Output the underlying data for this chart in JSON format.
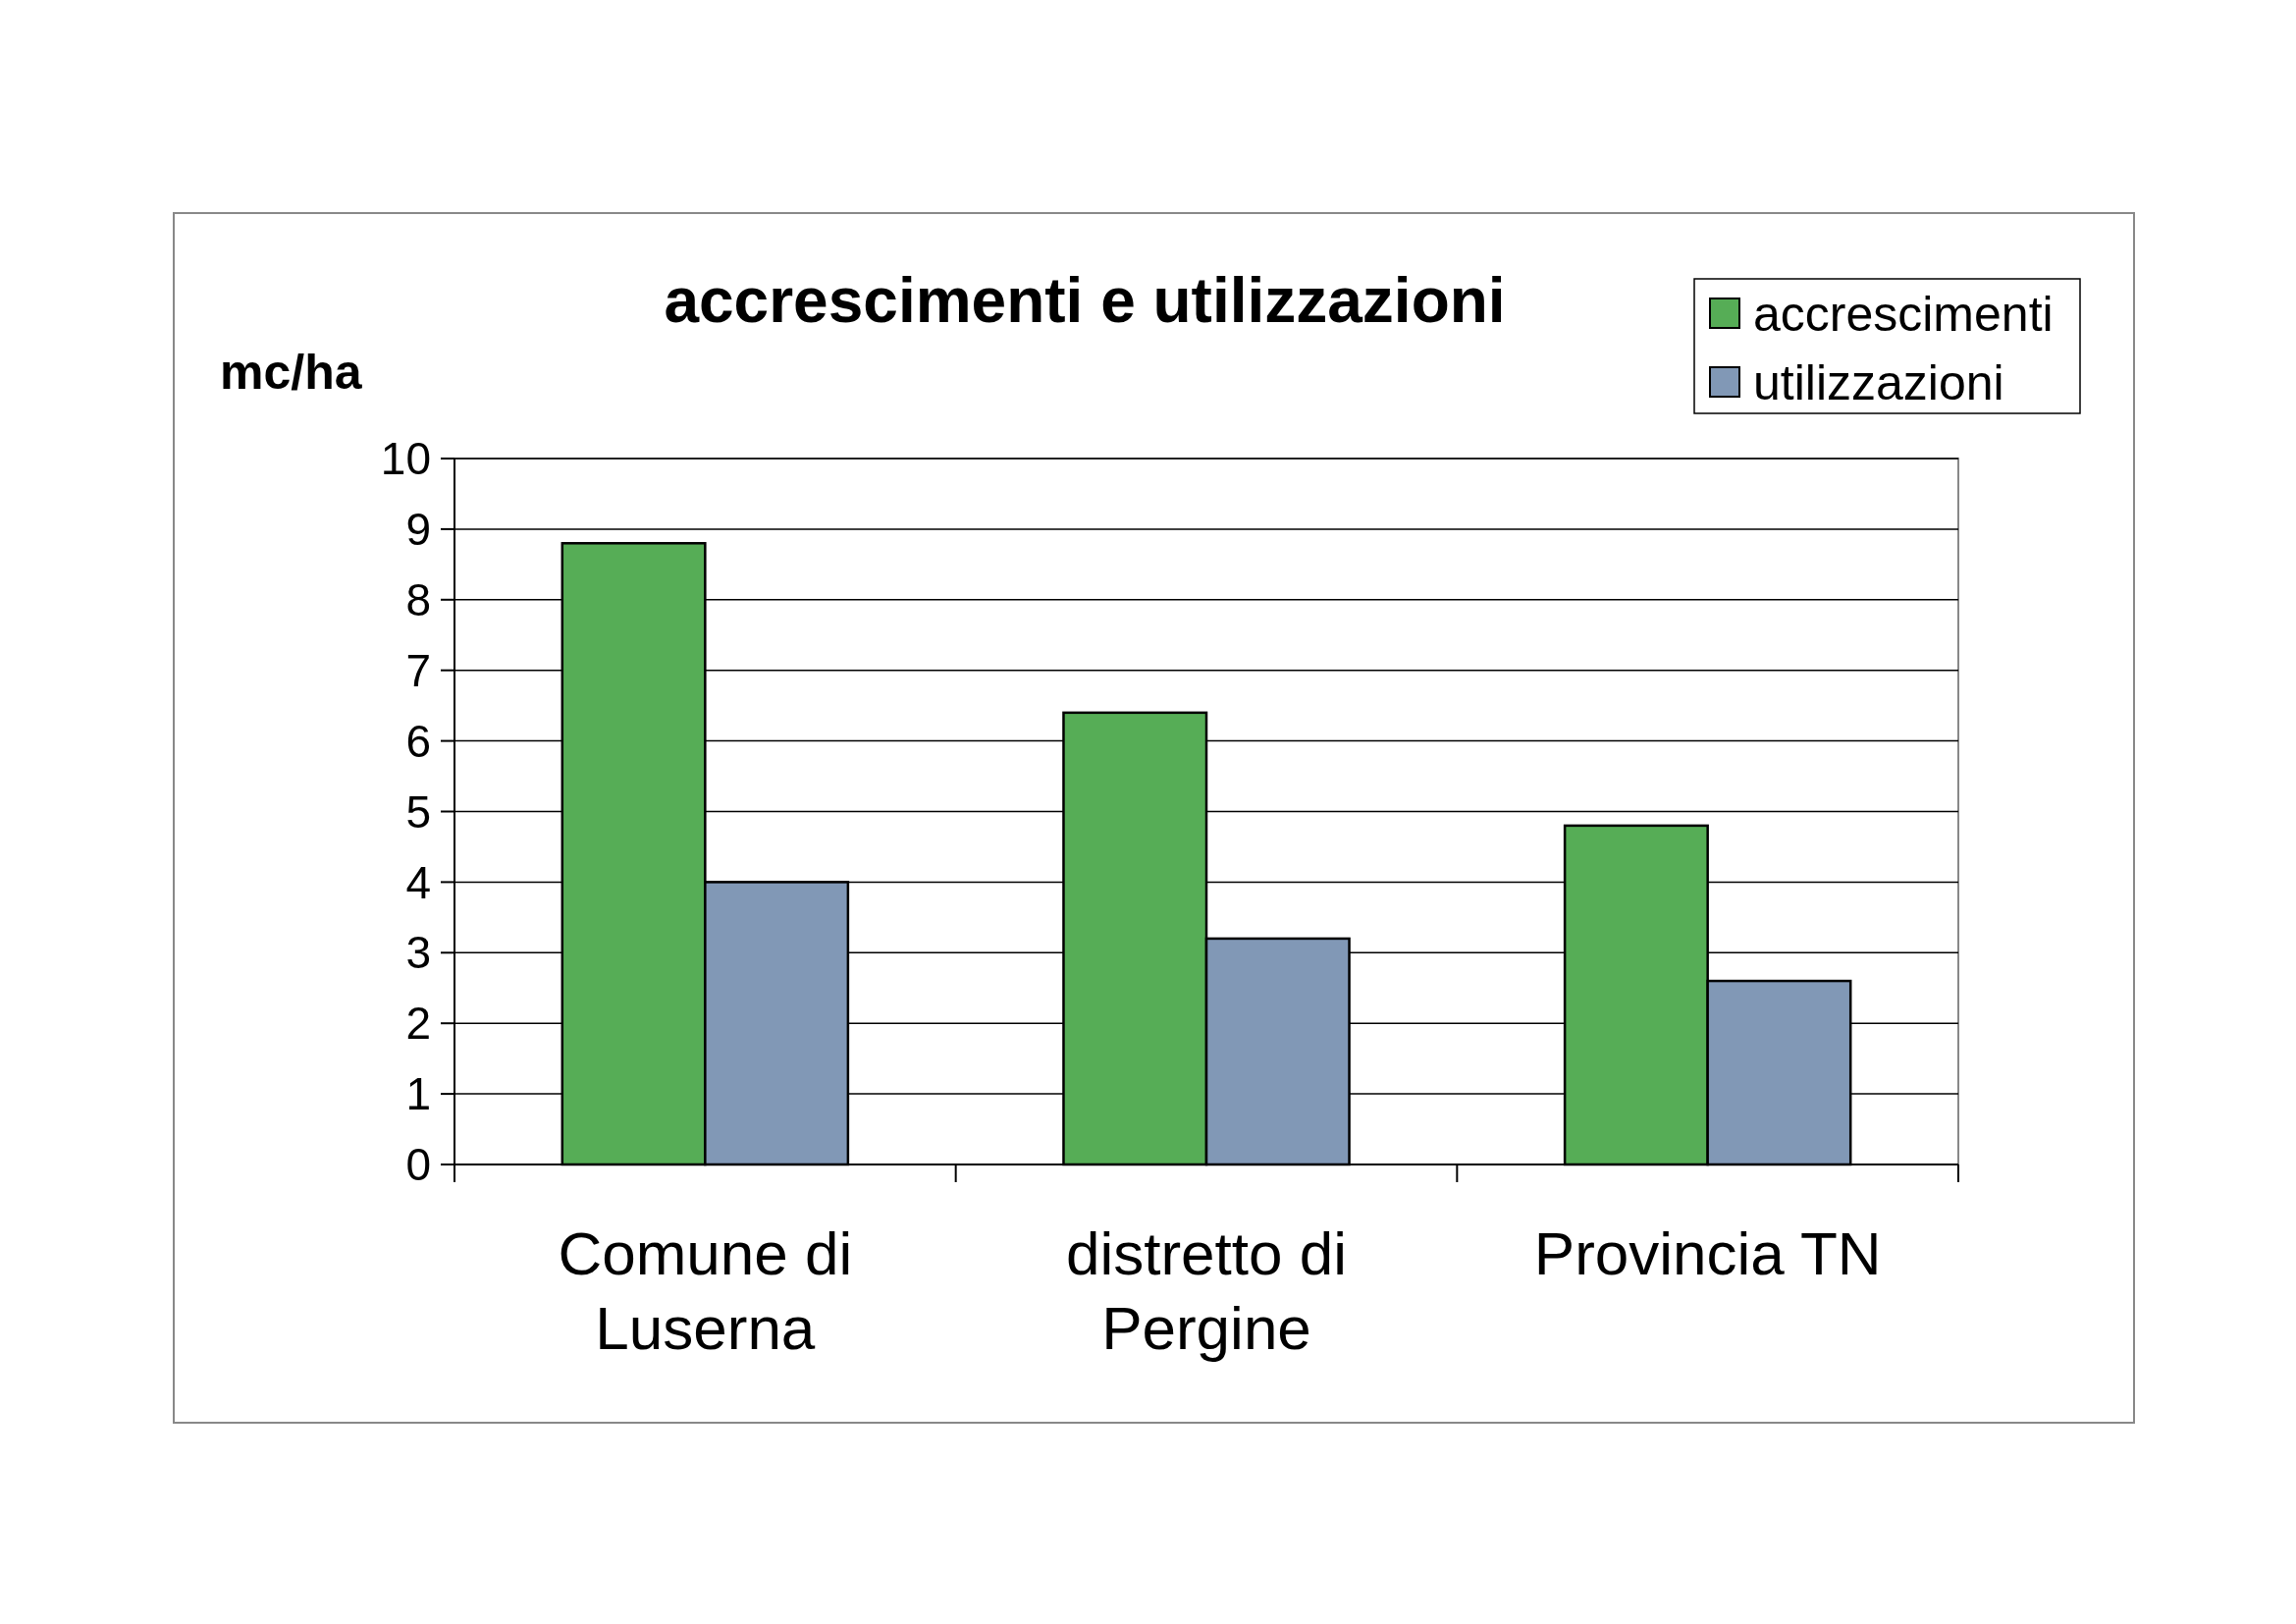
{
  "chart_data": {
    "type": "bar",
    "title": "accrescimenti e utilizzazioni",
    "ylabel": "mc/ha",
    "categories": [
      "Comune di Luserna",
      "distretto di Pergine",
      "Provincia TN"
    ],
    "series": [
      {
        "name": "accrescimenti",
        "color": "#56ad56",
        "values": [
          8.8,
          6.4,
          4.8
        ]
      },
      {
        "name": "utilizzazioni",
        "color": "#8198b6",
        "values": [
          4.0,
          3.2,
          2.6
        ]
      }
    ],
    "ylim": [
      0,
      10
    ],
    "yticks": [
      0,
      1,
      2,
      3,
      4,
      5,
      6,
      7,
      8,
      9,
      10
    ],
    "grid": "y",
    "legend": "top right"
  }
}
